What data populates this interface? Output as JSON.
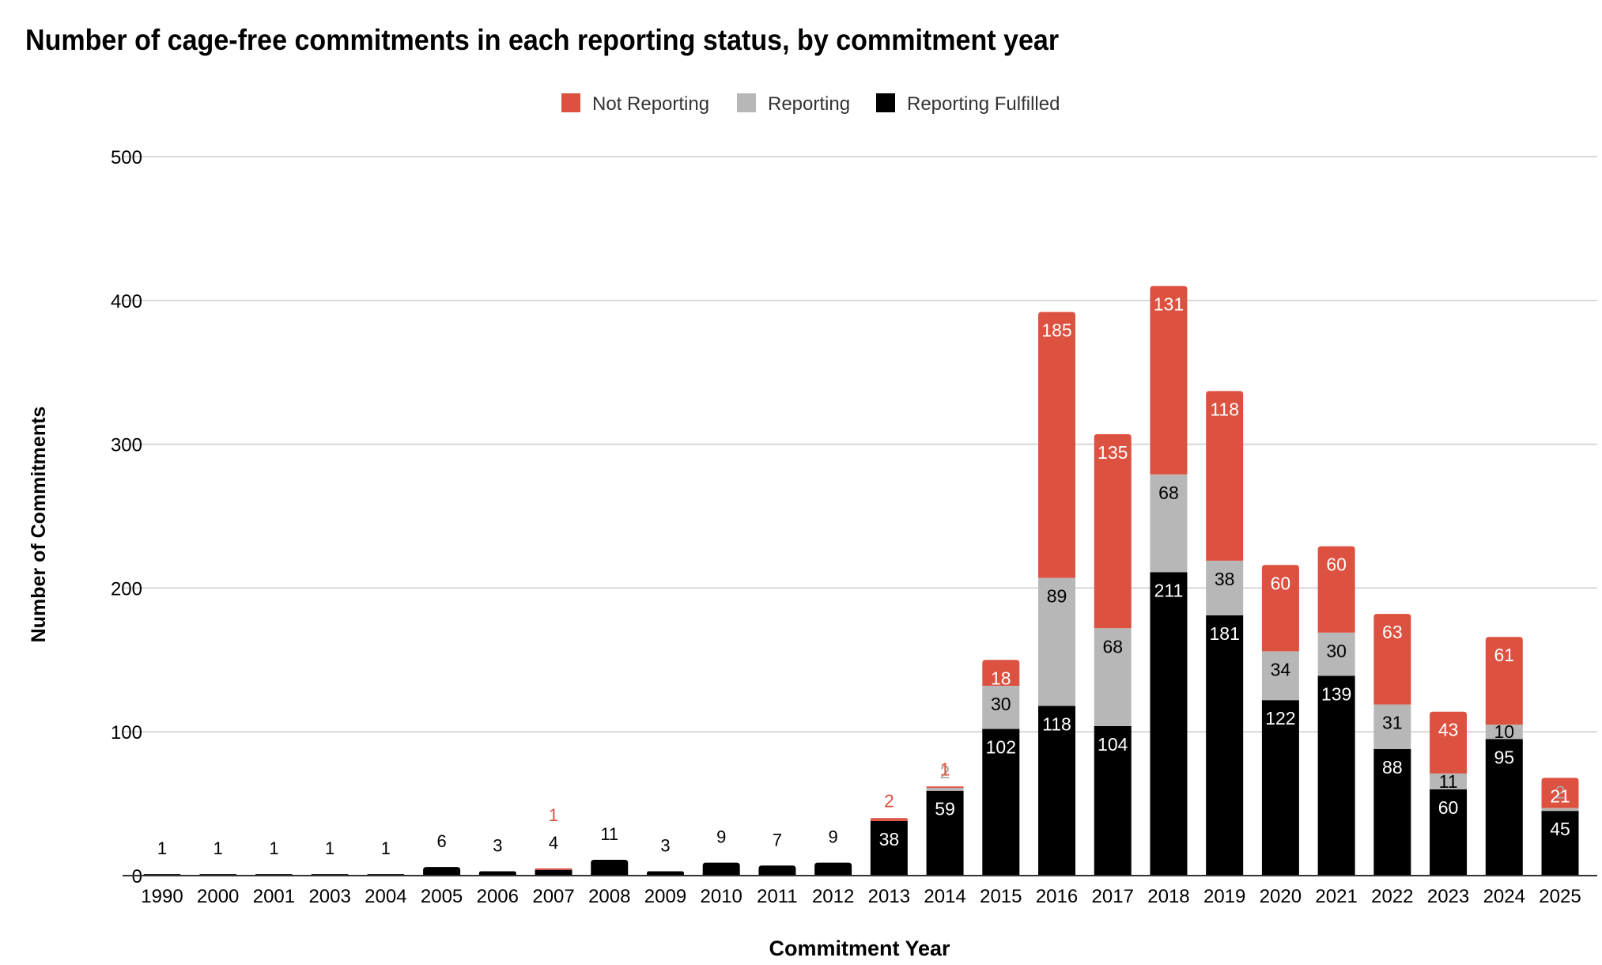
{
  "chart_data": {
    "type": "bar",
    "stacked": true,
    "title": "Number of cage-free commitments in each reporting status, by commitment year",
    "xlabel": "Commitment Year",
    "ylabel": "Number of Commitments",
    "ylim": [
      0,
      500
    ],
    "yticks": [
      "0",
      "100",
      "200",
      "300",
      "400",
      "500"
    ],
    "grid": true,
    "legend_position": "top",
    "categories": [
      "1990",
      "2000",
      "2001",
      "2003",
      "2004",
      "2005",
      "2006",
      "2007",
      "2008",
      "2009",
      "2010",
      "2011",
      "2012",
      "2013",
      "2014",
      "2015",
      "2016",
      "2017",
      "2018",
      "2019",
      "2020",
      "2021",
      "2022",
      "2023",
      "2024",
      "2025"
    ],
    "series": [
      {
        "name": "Reporting Fulfilled",
        "color": "#000000",
        "values": [
          1,
          1,
          1,
          1,
          1,
          6,
          3,
          4,
          11,
          3,
          9,
          7,
          9,
          38,
          59,
          102,
          118,
          104,
          211,
          181,
          122,
          139,
          88,
          60,
          95,
          45
        ]
      },
      {
        "name": "Reporting",
        "color": "#b7b7b7",
        "values": [
          0,
          0,
          0,
          0,
          0,
          0,
          0,
          0,
          0,
          0,
          0,
          0,
          0,
          0,
          2,
          30,
          89,
          68,
          68,
          38,
          34,
          30,
          31,
          11,
          10,
          2
        ]
      },
      {
        "name": "Not Reporting",
        "color": "#dc5140",
        "values": [
          0,
          0,
          0,
          0,
          0,
          0,
          0,
          1,
          0,
          0,
          0,
          0,
          0,
          2,
          1,
          18,
          185,
          135,
          131,
          118,
          60,
          60,
          63,
          43,
          61,
          21
        ]
      }
    ],
    "legend_order": [
      "Not Reporting",
      "Reporting",
      "Reporting Fulfilled"
    ]
  }
}
